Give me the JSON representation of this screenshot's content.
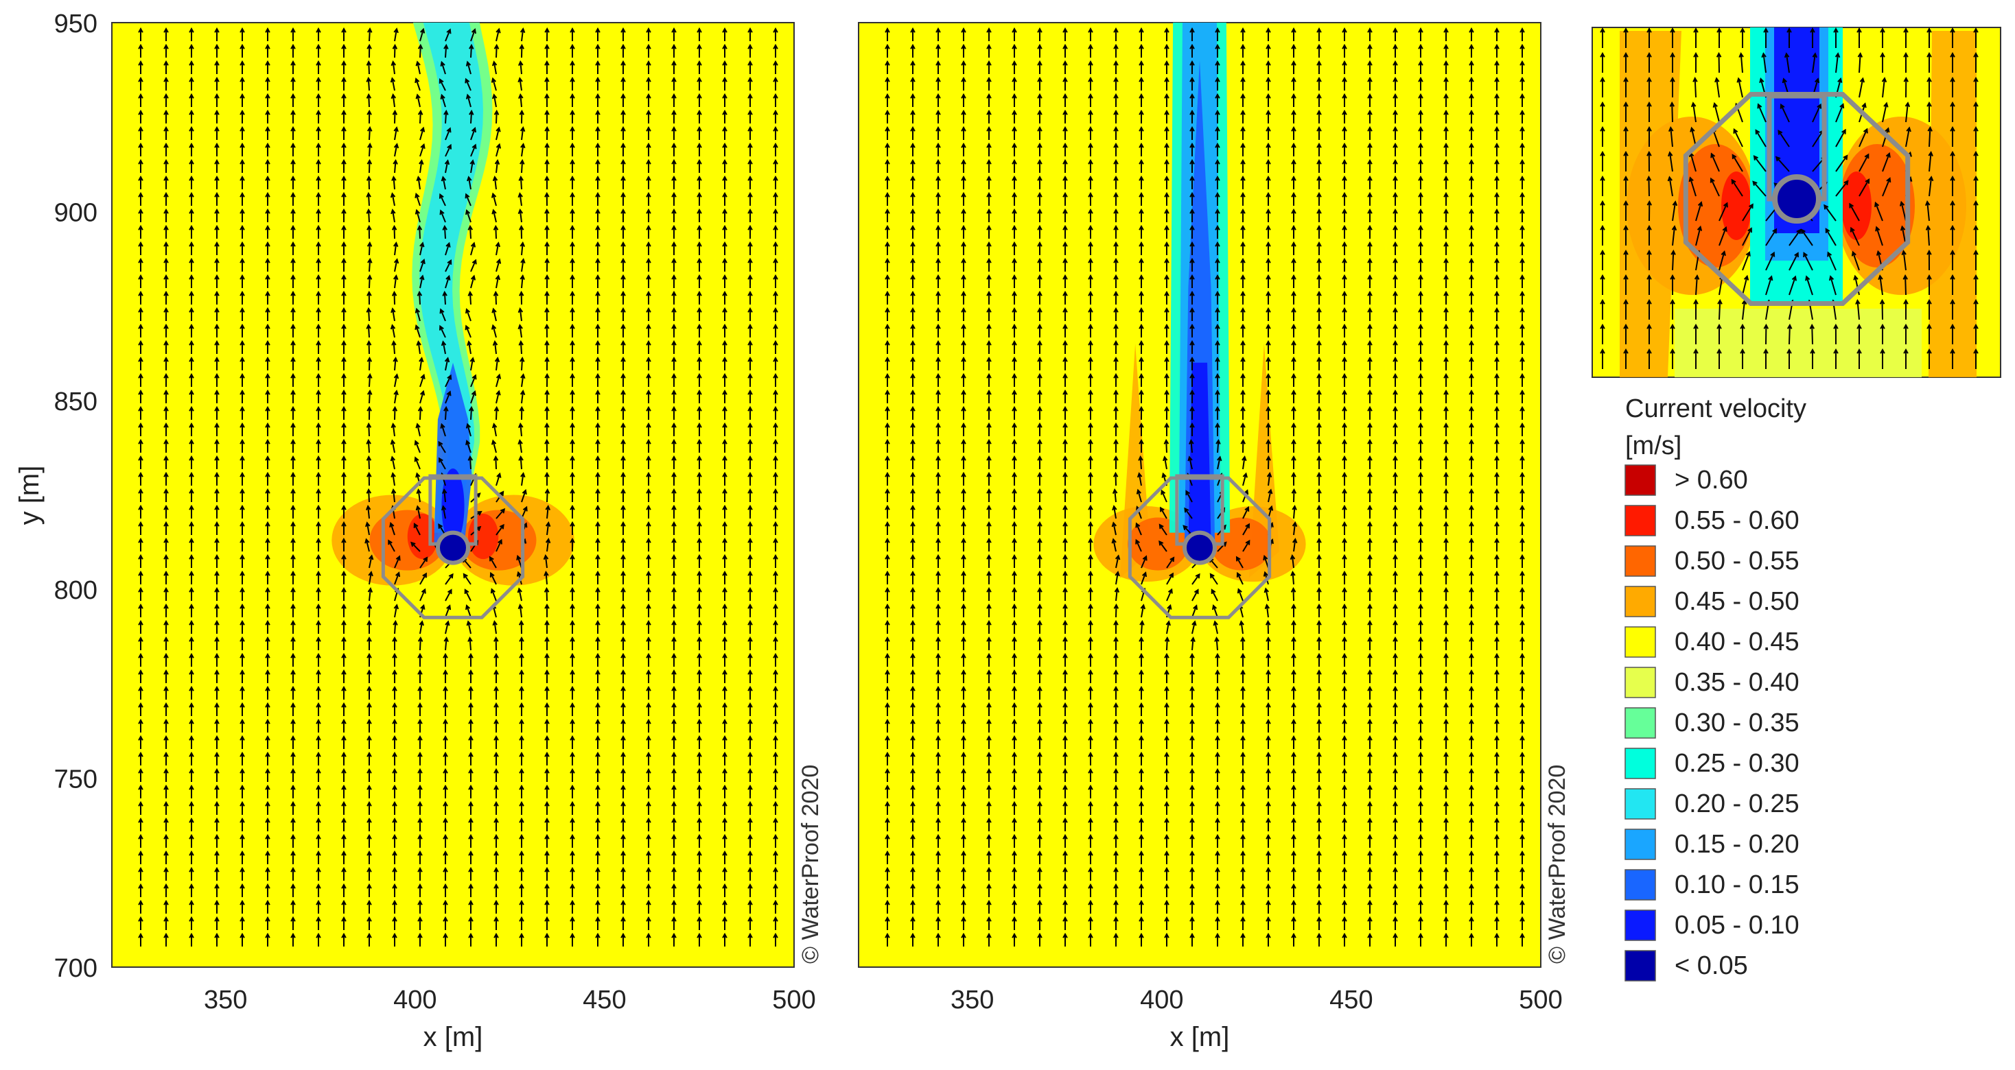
{
  "figure": {
    "copyright": "© WaterProof 2020",
    "colors": {
      "background": "#ffff00",
      "arrow": "#000000",
      "structure": "#8c8c8c"
    }
  },
  "chart_data": [
    {
      "type": "heatmap",
      "panel": "left",
      "title": "",
      "xlabel": "x [m]",
      "ylabel": "y [m]",
      "xlim": [
        320,
        500
      ],
      "ylim": [
        700,
        950
      ],
      "xticks": [
        350,
        400,
        450,
        500
      ],
      "yticks": [
        700,
        750,
        800,
        850,
        900,
        950
      ],
      "xtick_labels": [
        "350",
        "400",
        "450",
        "500"
      ],
      "ytick_labels": [
        "700",
        "750",
        "800",
        "850",
        "900",
        "950"
      ],
      "background_class": "0.40 - 0.45",
      "structure_center": [
        410,
        810
      ],
      "vector_field": "current direction arrows, predominantly northward (+y)",
      "wake": "meandering low-velocity wake downstream of structure, ~815 to 950 m"
    },
    {
      "type": "heatmap",
      "panel": "middle",
      "title": "",
      "xlabel": "x [m]",
      "ylabel": "",
      "xlim": [
        320,
        500
      ],
      "ylim": [
        700,
        950
      ],
      "xticks": [
        350,
        400,
        450,
        500
      ],
      "xtick_labels": [
        "350",
        "400",
        "450",
        "500"
      ],
      "background_class": "0.40 - 0.45",
      "structure_center": [
        410,
        810
      ],
      "vector_field": "current direction arrows, predominantly northward (+y)",
      "wake": "straight low-velocity wake downstream of structure, ~815 to 950 m"
    },
    {
      "type": "heatmap",
      "panel": "inset",
      "title": "",
      "xlabel": "",
      "ylabel": "",
      "description_axes": "none",
      "structure": "zoom of structure with velocity field"
    }
  ],
  "legend": {
    "title": "Current velocity",
    "unit": "[m/s]",
    "entries": [
      {
        "label": "> 0.60",
        "color": "#c80000"
      },
      {
        "label": "0.55 - 0.60",
        "color": "#ff1a00"
      },
      {
        "label": "0.50 - 0.55",
        "color": "#ff6600"
      },
      {
        "label": "0.45 - 0.50",
        "color": "#ffaa00"
      },
      {
        "label": "0.40 - 0.45",
        "color": "#ffff00"
      },
      {
        "label": "0.35 - 0.40",
        "color": "#e6ff4d"
      },
      {
        "label": "0.30 - 0.35",
        "color": "#66ff99"
      },
      {
        "label": "0.25 - 0.30",
        "color": "#00ffdd"
      },
      {
        "label": "0.20 - 0.25",
        "color": "#22e6f2"
      },
      {
        "label": "0.15 - 0.20",
        "color": "#1aa6ff"
      },
      {
        "label": "0.10 - 0.15",
        "color": "#1966ff"
      },
      {
        "label": "0.05 - 0.10",
        "color": "#0a1aff"
      },
      {
        "label": "< 0.05",
        "color": "#0000aa"
      }
    ]
  }
}
